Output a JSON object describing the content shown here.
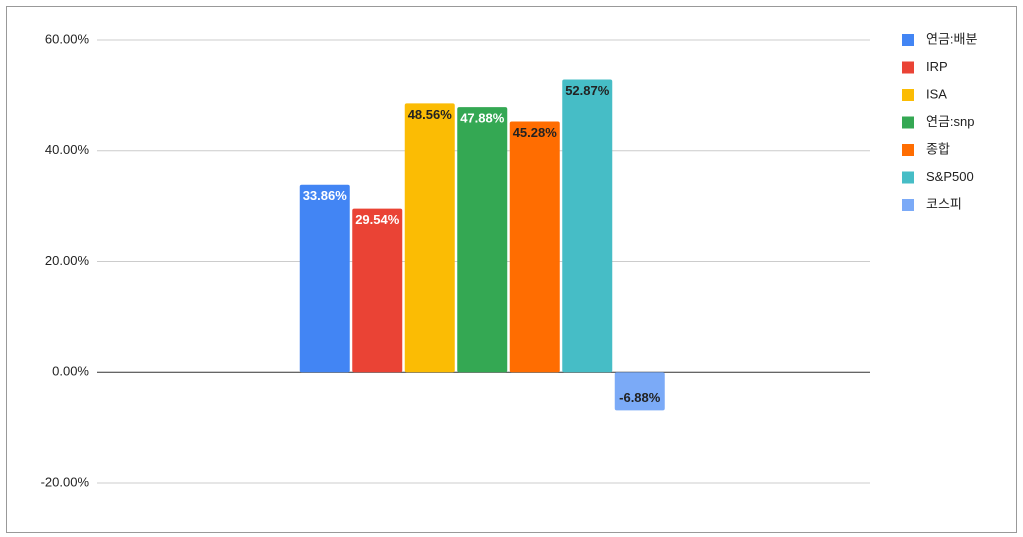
{
  "chart_data": {
    "type": "bar",
    "categories": [
      null
    ],
    "series": [
      {
        "name": "연금:배분",
        "color": "#4285f4",
        "label_color": "#ffffff",
        "values": [
          33.86
        ],
        "value_labels": [
          "33.86%"
        ]
      },
      {
        "name": "IRP",
        "color": "#ea4335",
        "label_color": "#ffffff",
        "values": [
          29.54
        ],
        "value_labels": [
          "29.54%"
        ]
      },
      {
        "name": "ISA",
        "color": "#fbbc04",
        "label_color": "#222222",
        "values": [
          48.56
        ],
        "value_labels": [
          "48.56%"
        ]
      },
      {
        "name": "연금:snp",
        "color": "#34a853",
        "label_color": "#ffffff",
        "values": [
          47.88
        ],
        "value_labels": [
          "47.88%"
        ]
      },
      {
        "name": "종합",
        "color": "#ff6d01",
        "label_color": "#222222",
        "values": [
          45.28
        ],
        "value_labels": [
          "45.28%"
        ]
      },
      {
        "name": "S&P500",
        "color": "#46bdc6",
        "label_color": "#222222",
        "values": [
          52.87
        ],
        "value_labels": [
          "52.87%"
        ]
      },
      {
        "name": "코스피",
        "color": "#7baaf7",
        "label_color": "#222222",
        "values": [
          -6.88
        ],
        "value_labels": [
          "-6.88%"
        ]
      }
    ],
    "ylim": [
      -20,
      60
    ],
    "yticks": [
      {
        "value": -20,
        "label": "-20.00%"
      },
      {
        "value": 0,
        "label": "0.00%"
      },
      {
        "value": 20,
        "label": "20.00%"
      },
      {
        "value": 40,
        "label": "40.00%"
      },
      {
        "value": 60,
        "label": "60.00%"
      }
    ],
    "grid": true,
    "legend": "right"
  }
}
